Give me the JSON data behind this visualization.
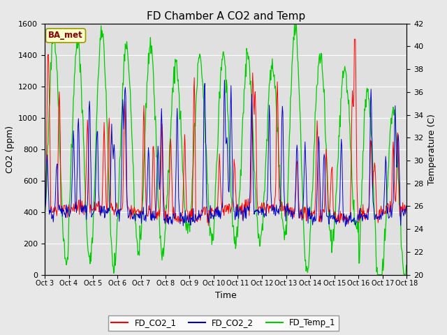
{
  "title": "FD Chamber A CO2 and Temp",
  "xlabel": "Time",
  "ylabel_left": "CO2 (ppm)",
  "ylabel_right": "Temperature (C)",
  "ylim_left": [
    0,
    1600
  ],
  "ylim_right": [
    20,
    42
  ],
  "yticks_left": [
    0,
    200,
    400,
    600,
    800,
    1000,
    1200,
    1400,
    1600
  ],
  "yticks_right": [
    20,
    22,
    24,
    26,
    28,
    30,
    32,
    34,
    36,
    38,
    40,
    42
  ],
  "xtick_labels": [
    "Oct 3",
    "Oct 4",
    "Oct 5",
    "Oct 6",
    "Oct 7",
    "Oct 8",
    "Oct 9",
    "Oct 10",
    "Oct 11",
    "Oct 12",
    "Oct 13",
    "Oct 14",
    "Oct 15",
    "Oct 16",
    "Oct 17",
    "Oct 18"
  ],
  "color_co2_1": "#ff0000",
  "color_co2_2": "#0000cc",
  "color_temp": "#00cc00",
  "legend_labels": [
    "FD_CO2_1",
    "FD_CO2_2",
    "FD_Temp_1"
  ],
  "annotation_text": "BA_met",
  "background_color": "#e8e8e8",
  "plot_bg_color": "#e0e0e0",
  "title_fontsize": 11,
  "axis_fontsize": 9,
  "tick_fontsize": 8
}
